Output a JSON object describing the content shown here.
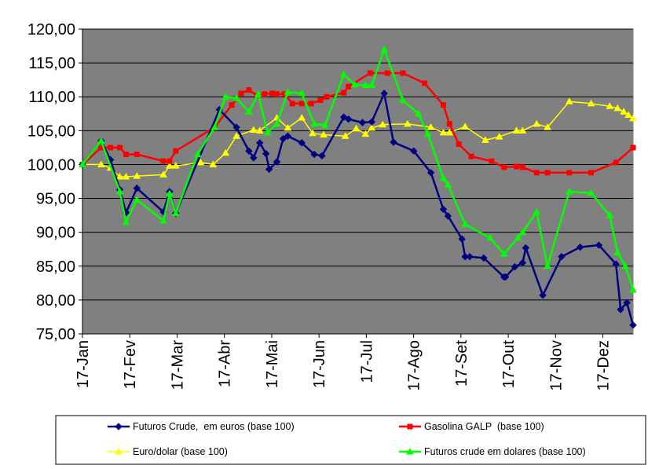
{
  "chart_data": {
    "type": "line",
    "title": "",
    "xlabel": "",
    "ylabel": "",
    "ylim": [
      75,
      120
    ],
    "y_ticks": [
      "75,00",
      "80,00",
      "85,00",
      "90,00",
      "95,00",
      "100,00",
      "105,00",
      "110,00",
      "115,00",
      "120,00"
    ],
    "x_tick_labels": [
      "17-Jan",
      "17-Fev",
      "17-Mar",
      "17-Abr",
      "17-Mai",
      "17-Jun",
      "17-Jul",
      "17-Ago",
      "17-Set",
      "17-Out",
      "17-Nov",
      "17-Dez"
    ],
    "x_range_days": [
      0,
      354
    ],
    "grid": "horizontal",
    "plot_background": "#808080",
    "legend_position": "bottom",
    "series": [
      {
        "name": "Futuros Crude,  em euros (base 100)",
        "color": "#000080",
        "marker": "diamond",
        "x": [
          0,
          12,
          18,
          24,
          28,
          35,
          52,
          56,
          60,
          88,
          99,
          107,
          110,
          114,
          118,
          120,
          125,
          129,
          132,
          141,
          149,
          154,
          168,
          171,
          180,
          186,
          194,
          200,
          213,
          224,
          232,
          235,
          244,
          246,
          249,
          258,
          271,
          272,
          278,
          283,
          285,
          296,
          308,
          320,
          332,
          343,
          346,
          350,
          354
        ],
        "values": [
          100.0,
          103.5,
          100.7,
          96.3,
          92.9,
          96.5,
          93.0,
          96.0,
          92.8,
          108.1,
          105.5,
          102.0,
          101.0,
          103.2,
          101.6,
          99.3,
          100.4,
          103.8,
          104.2,
          103.2,
          101.5,
          101.3,
          107.0,
          106.7,
          106.2,
          106.3,
          110.5,
          103.3,
          102.0,
          98.8,
          93.4,
          92.4,
          89.0,
          86.4,
          86.4,
          86.2,
          83.4,
          83.4,
          84.9,
          85.5,
          87.7,
          80.7,
          86.4,
          87.8,
          88.1,
          85.3,
          78.6,
          79.6,
          76.3
        ]
      },
      {
        "name": "Gasolina GALP  (base 100)",
        "color": "#ff0000",
        "marker": "square",
        "x": [
          0,
          12,
          18,
          24,
          28,
          35,
          52,
          56,
          60,
          85,
          96,
          102,
          107,
          112,
          117,
          122,
          125,
          130,
          135,
          141,
          147,
          153,
          157,
          168,
          171,
          185,
          196,
          206,
          220,
          232,
          236,
          242,
          250,
          263,
          271,
          279,
          283,
          292,
          299,
          313,
          327,
          343,
          354
        ],
        "values": [
          100.0,
          102.5,
          102.5,
          102.5,
          101.5,
          101.5,
          100.5,
          100.5,
          102.0,
          105.5,
          108.8,
          110.5,
          111.0,
          110.2,
          110.4,
          110.5,
          110.4,
          110.4,
          109.0,
          109.0,
          109.0,
          109.5,
          110.0,
          110.6,
          111.5,
          113.5,
          113.5,
          113.5,
          112.0,
          108.8,
          106.0,
          103.0,
          101.2,
          100.5,
          99.6,
          99.7,
          99.6,
          98.8,
          98.8,
          98.8,
          98.8,
          100.3,
          102.5
        ]
      },
      {
        "name": "Euro/dolar (base 100)",
        "color": "#ffff00",
        "marker": "triangle",
        "x": [
          0,
          12,
          18,
          24,
          28,
          35,
          52,
          56,
          60,
          76,
          84,
          92,
          99,
          110,
          114,
          125,
          132,
          141,
          148,
          155,
          169,
          176,
          182,
          186,
          193,
          209,
          224,
          232,
          236,
          246,
          259,
          268,
          279,
          283,
          292,
          299,
          313,
          327,
          339,
          344,
          348,
          351,
          354
        ],
        "values": [
          100.0,
          100.0,
          99.5,
          98.2,
          98.2,
          98.3,
          98.5,
          99.8,
          99.8,
          100.3,
          100.0,
          101.7,
          104.2,
          105.1,
          105.0,
          106.9,
          105.4,
          106.9,
          104.6,
          104.4,
          104.2,
          105.3,
          104.5,
          105.4,
          105.9,
          106.0,
          105.5,
          104.7,
          104.7,
          105.6,
          103.6,
          104.1,
          105.0,
          105.0,
          106.0,
          105.5,
          109.3,
          109.0,
          108.6,
          108.3,
          107.8,
          107.3,
          106.8
        ]
      },
      {
        "name": "Futuros crude em dolares (base 100)",
        "color": "#00ff00",
        "marker": "triangle",
        "x": [
          0,
          12,
          24,
          28,
          35,
          52,
          56,
          60,
          74,
          85,
          92,
          99,
          107,
          113,
          119,
          125,
          132,
          141,
          149,
          156,
          168,
          175,
          182,
          186,
          194,
          206,
          216,
          222,
          232,
          235,
          246,
          262,
          271,
          280,
          283,
          292,
          299,
          313,
          327,
          339,
          344,
          349,
          354
        ],
        "values": [
          100.0,
          103.5,
          96.0,
          91.5,
          94.8,
          91.7,
          95.7,
          92.8,
          101.5,
          105.5,
          110.0,
          109.8,
          107.8,
          110.4,
          104.7,
          106.0,
          110.7,
          110.5,
          106.0,
          105.8,
          113.3,
          111.8,
          111.7,
          111.7,
          117.0,
          109.5,
          107.5,
          104.5,
          98.0,
          97.0,
          91.2,
          89.2,
          86.8,
          89.2,
          90.0,
          93.0,
          85.0,
          96.0,
          95.8,
          92.5,
          87.0,
          85.0,
          81.5
        ]
      }
    ]
  }
}
